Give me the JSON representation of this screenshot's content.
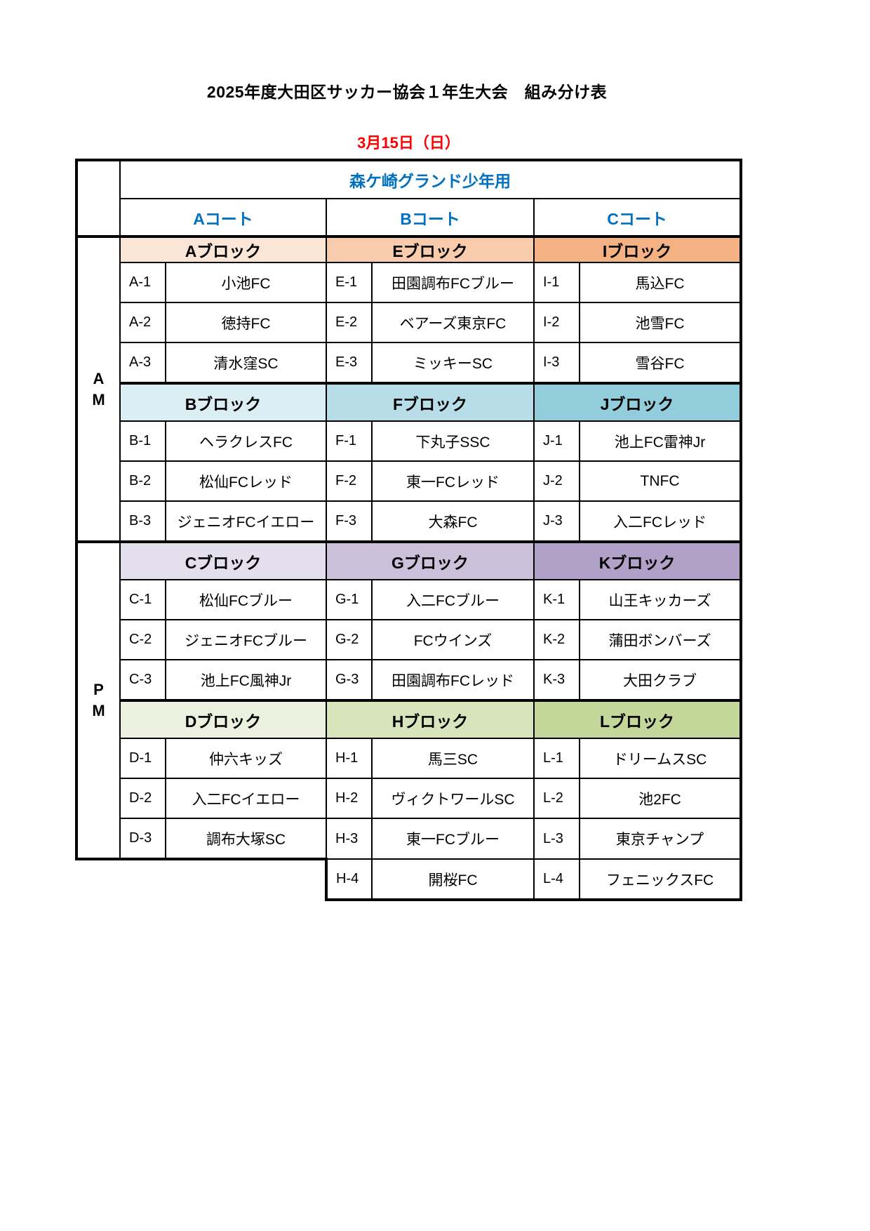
{
  "title": "2025年度大田区サッカー協会１年生大会　組み分け表",
  "date": "3月15日（日）",
  "venue": "森ケ崎グランド少年用",
  "courts": [
    "Aコート",
    "Bコート",
    "Cコート"
  ],
  "colors": {
    "court_text": "#0070c0",
    "date_text": "#ff0000"
  },
  "sessions": [
    {
      "label": "A M",
      "rows": [
        {
          "blocks": [
            {
              "name": "Aブロック",
              "color": "#fbe5d6",
              "teams": [
                [
                  "A-1",
                  "小池FC"
                ],
                [
                  "A-2",
                  "徳持FC"
                ],
                [
                  "A-3",
                  "清水窪SC"
                ]
              ]
            },
            {
              "name": "Eブロック",
              "color": "#f8cbad",
              "teams": [
                [
                  "E-1",
                  "田園調布FCブルー"
                ],
                [
                  "E-2",
                  "ベアーズ東京FC"
                ],
                [
                  "E-3",
                  "ミッキーSC"
                ]
              ]
            },
            {
              "name": "Iブロック",
              "color": "#f4b183",
              "teams": [
                [
                  "I-1",
                  "馬込FC"
                ],
                [
                  "I-2",
                  "池雪FC"
                ],
                [
                  "I-3",
                  "雪谷FC"
                ]
              ]
            }
          ]
        },
        {
          "blocks": [
            {
              "name": "Bブロック",
              "color": "#daeef3",
              "teams": [
                [
                  "B-1",
                  "ヘラクレスFC"
                ],
                [
                  "B-2",
                  "松仙FCレッド"
                ],
                [
                  "B-3",
                  "ジェニオFCイエロー"
                ]
              ]
            },
            {
              "name": "Fブロック",
              "color": "#b7dee8",
              "teams": [
                [
                  "F-1",
                  "下丸子SSC"
                ],
                [
                  "F-2",
                  "東一FCレッド"
                ],
                [
                  "F-3",
                  "大森FC"
                ]
              ]
            },
            {
              "name": "Jブロック",
              "color": "#92cddc",
              "teams": [
                [
                  "J-1",
                  "池上FC雷神Jr"
                ],
                [
                  "J-2",
                  "TNFC"
                ],
                [
                  "J-3",
                  "入二FCレッド"
                ]
              ]
            }
          ]
        }
      ]
    },
    {
      "label": "P M",
      "rows": [
        {
          "blocks": [
            {
              "name": "Cブロック",
              "color": "#e4dfec",
              "teams": [
                [
                  "C-1",
                  "松仙FCブルー"
                ],
                [
                  "C-2",
                  "ジェニオFCブルー"
                ],
                [
                  "C-3",
                  "池上FC風神Jr"
                ]
              ]
            },
            {
              "name": "Gブロック",
              "color": "#ccc0da",
              "teams": [
                [
                  "G-1",
                  "入二FCブルー"
                ],
                [
                  "G-2",
                  "FCウインズ"
                ],
                [
                  "G-3",
                  "田園調布FCレッド"
                ]
              ]
            },
            {
              "name": "Kブロック",
              "color": "#b1a0c7",
              "teams": [
                [
                  "K-1",
                  "山王キッカーズ"
                ],
                [
                  "K-2",
                  "蒲田ボンバーズ"
                ],
                [
                  "K-3",
                  "大田クラブ"
                ]
              ]
            }
          ]
        },
        {
          "blocks": [
            {
              "name": "Dブロック",
              "color": "#ebf1de",
              "teams": [
                [
                  "D-1",
                  "仲六キッズ"
                ],
                [
                  "D-2",
                  "入二FCイエロー"
                ],
                [
                  "D-3",
                  "調布大塚SC"
                ]
              ]
            },
            {
              "name": "Hブロック",
              "color": "#d8e4bc",
              "teams": [
                [
                  "H-1",
                  "馬三SC"
                ],
                [
                  "H-2",
                  "ヴィクトワールSC"
                ],
                [
                  "H-3",
                  "東一FCブルー"
                ],
                [
                  "H-4",
                  "開桜FC"
                ]
              ]
            },
            {
              "name": "Lブロック",
              "color": "#c4d79b",
              "teams": [
                [
                  "L-1",
                  "ドリームスSC"
                ],
                [
                  "L-2",
                  "池2FC"
                ],
                [
                  "L-3",
                  "東京チャンプ"
                ],
                [
                  "L-4",
                  "フェニックスFC"
                ]
              ]
            }
          ]
        }
      ]
    }
  ]
}
